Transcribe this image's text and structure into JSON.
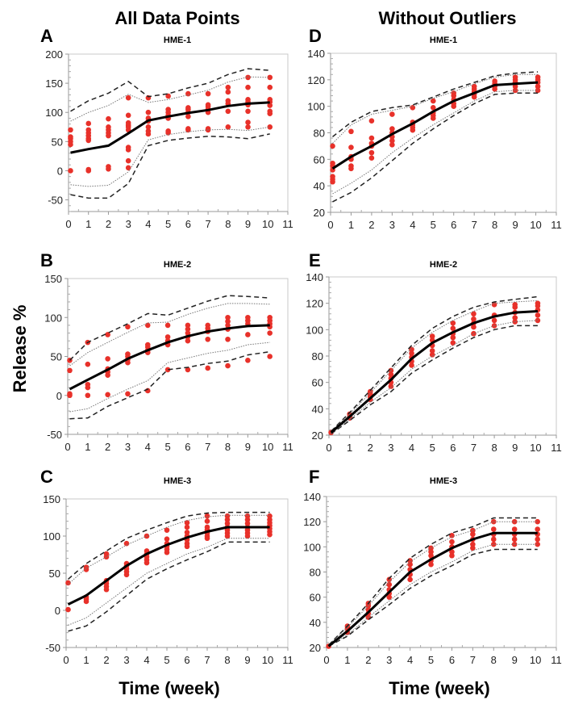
{
  "figure": {
    "column_headers": [
      "All Data Points",
      "Without Outliers"
    ],
    "ylabel": "Release %",
    "xlabel": "Time (week)",
    "colors": {
      "points": "#e8312a",
      "median": "#000000",
      "inner": "#777777",
      "outer": "#222222"
    }
  },
  "chart_data": [
    {
      "id": "A",
      "type": "line",
      "title": "HME-1",
      "ylim": [
        -70,
        200
      ],
      "yticks": [
        -50,
        0,
        50,
        100,
        150,
        200
      ],
      "xlim": [
        0,
        11
      ],
      "xticks": [
        0,
        1,
        2,
        3,
        4,
        5,
        6,
        7,
        8,
        9,
        10,
        11
      ],
      "x": [
        0.1,
        1,
        2,
        3,
        4,
        5,
        6,
        7,
        8,
        9,
        10.1
      ],
      "median": [
        31,
        37,
        43,
        64,
        86,
        93,
        99,
        104,
        111,
        115,
        117
      ],
      "inner_upper": [
        85,
        100,
        112,
        131,
        117,
        122,
        130,
        138,
        152,
        161,
        160
      ],
      "inner_lower": [
        -24,
        -27,
        -25,
        -2,
        53,
        62,
        67,
        70,
        71,
        69,
        75
      ],
      "outer_upper": [
        102,
        120,
        133,
        153,
        127,
        132,
        142,
        150,
        165,
        175,
        172
      ],
      "outer_lower": [
        -41,
        -47,
        -47,
        -22,
        43,
        52,
        56,
        59,
        58,
        55,
        63
      ],
      "points": [
        [
          0,
          45,
          50,
          55,
          58,
          70
        ],
        [
          0,
          2,
          52,
          55,
          60,
          65,
          70,
          81
        ],
        [
          3,
          7,
          60,
          65,
          70,
          75,
          89
        ],
        [
          5,
          17,
          36,
          40,
          70,
          75,
          78,
          82,
          95,
          125
        ],
        [
          63,
          68,
          75,
          85,
          90,
          100,
          125
        ],
        [
          65,
          68,
          90,
          95,
          100,
          105,
          128
        ],
        [
          70,
          72,
          93,
          100,
          105,
          108,
          132
        ],
        [
          70,
          72,
          100,
          105,
          110,
          113,
          132
        ],
        [
          75,
          102,
          115,
          120,
          135,
          143
        ],
        [
          75,
          83,
          102,
          113,
          118,
          122,
          143,
          160
        ],
        [
          75,
          98,
          102,
          112,
          118,
          122,
          143,
          160
        ]
      ]
    },
    {
      "id": "B",
      "type": "line",
      "title": "HME-2",
      "ylim": [
        -50,
        150
      ],
      "yticks": [
        -50,
        0,
        50,
        100,
        150
      ],
      "xlim": [
        0,
        11
      ],
      "xticks": [
        0,
        1,
        2,
        3,
        4,
        5,
        6,
        7,
        8,
        9,
        10,
        11
      ],
      "x": [
        0.1,
        1,
        2,
        3,
        4,
        5,
        6,
        7,
        8,
        9,
        10.1
      ],
      "median": [
        8,
        20,
        33,
        47,
        58,
        68,
        76,
        82,
        86,
        89,
        90
      ],
      "inner_upper": [
        38,
        55,
        68,
        81,
        93,
        94,
        104,
        112,
        118,
        118,
        117
      ],
      "inner_lower": [
        -21,
        -17,
        -4,
        8,
        19,
        42,
        48,
        54,
        58,
        65,
        68
      ],
      "outer_upper": [
        45,
        68,
        80,
        92,
        105,
        103,
        112,
        121,
        128,
        127,
        125
      ],
      "outer_lower": [
        -30,
        -29,
        -14,
        -3,
        8,
        33,
        36,
        41,
        44,
        52,
        56
      ],
      "points": [
        [
          0,
          2,
          32,
          45
        ],
        [
          0,
          10,
          14,
          40,
          68
        ],
        [
          1,
          26,
          30,
          34,
          47,
          78
        ],
        [
          2,
          42,
          46,
          50,
          53,
          88
        ],
        [
          6,
          55,
          58,
          62,
          65,
          90
        ],
        [
          33,
          65,
          70,
          75,
          90
        ],
        [
          33,
          70,
          75,
          80,
          85,
          90
        ],
        [
          35,
          72,
          82,
          86,
          90
        ],
        [
          38,
          72,
          85,
          90,
          95,
          100
        ],
        [
          45,
          78,
          92,
          96,
          100
        ],
        [
          50,
          80,
          88,
          92,
          96,
          100
        ]
      ]
    },
    {
      "id": "C",
      "type": "line",
      "title": "HME-3",
      "ylim": [
        -50,
        150
      ],
      "yticks": [
        -50,
        0,
        50,
        100,
        150
      ],
      "xlim": [
        0,
        11
      ],
      "xticks": [
        0,
        1,
        2,
        3,
        4,
        5,
        6,
        7,
        8,
        9,
        10,
        11
      ],
      "x": [
        0.1,
        1,
        2,
        3,
        4,
        5,
        6,
        7,
        8,
        9,
        10.1
      ],
      "median": [
        8,
        20,
        40,
        60,
        76,
        88,
        98,
        106,
        112,
        112,
        112
      ],
      "inner_upper": [
        35,
        57,
        72,
        88,
        100,
        112,
        121,
        126,
        128,
        128,
        128
      ],
      "inner_lower": [
        -20,
        -10,
        10,
        30,
        50,
        63,
        76,
        85,
        97,
        97,
        97
      ],
      "outer_upper": [
        42,
        63,
        80,
        97,
        108,
        118,
        127,
        131,
        132,
        132,
        132
      ],
      "outer_lower": [
        -28,
        -21,
        -2,
        20,
        42,
        56,
        68,
        79,
        92,
        92,
        92
      ],
      "points": [
        [
          1,
          37
        ],
        [
          12,
          15,
          18,
          55,
          58
        ],
        [
          28,
          32,
          36,
          40,
          72,
          76
        ],
        [
          48,
          52,
          56,
          60,
          63,
          90
        ],
        [
          64,
          68,
          72,
          76,
          80,
          100
        ],
        [
          78,
          82,
          86,
          90,
          96,
          108
        ],
        [
          86,
          90,
          95,
          100,
          105,
          112,
          118
        ],
        [
          97,
          100,
          104,
          108,
          112,
          120,
          127
        ],
        [
          100,
          104,
          108,
          112,
          117,
          122,
          127
        ],
        [
          100,
          104,
          108,
          112,
          117,
          122,
          127
        ],
        [
          102,
          106,
          110,
          114,
          118,
          122,
          127
        ]
      ]
    },
    {
      "id": "D",
      "type": "line",
      "title": "HME-1",
      "ylim": [
        20,
        140
      ],
      "yticks": [
        20,
        40,
        60,
        80,
        100,
        120,
        140
      ],
      "xlim": [
        0,
        11
      ],
      "xticks": [
        0,
        1,
        2,
        3,
        4,
        5,
        6,
        7,
        8,
        9,
        10,
        11
      ],
      "x": [
        0.1,
        1,
        2,
        3,
        4,
        5,
        6,
        7,
        8,
        9,
        10.1
      ],
      "median": [
        53,
        62,
        70,
        79,
        87,
        96,
        104,
        110,
        116,
        117,
        118
      ],
      "inner_upper": [
        72,
        86,
        94,
        97,
        100,
        106,
        111,
        117,
        122,
        124,
        124
      ],
      "inner_lower": [
        34,
        42,
        52,
        65,
        76,
        86,
        95,
        104,
        111,
        112,
        112
      ],
      "outer_upper": [
        77,
        88,
        96,
        99,
        101,
        107,
        113,
        118,
        123,
        125,
        126
      ],
      "outer_lower": [
        28,
        35,
        46,
        59,
        72,
        83,
        93,
        102,
        109,
        110,
        110
      ],
      "points": [
        [
          43,
          45,
          47,
          52,
          55,
          57,
          70
        ],
        [
          53,
          55,
          60,
          62,
          69,
          81
        ],
        [
          61,
          65,
          70,
          72,
          76,
          89
        ],
        [
          71,
          74,
          77,
          80,
          83,
          94
        ],
        [
          82,
          84,
          86,
          88,
          99
        ],
        [
          91,
          93,
          95,
          99,
          104
        ],
        [
          100,
          102,
          105,
          108,
          110
        ],
        [
          107,
          109,
          111,
          113,
          115
        ],
        [
          113,
          115,
          117,
          119
        ],
        [
          112,
          115,
          118,
          120,
          122
        ],
        [
          112,
          115,
          118,
          120,
          122
        ]
      ]
    },
    {
      "id": "E",
      "type": "line",
      "title": "HME-2",
      "ylim": [
        20,
        140
      ],
      "yticks": [
        20,
        40,
        60,
        80,
        100,
        120,
        140
      ],
      "xlim": [
        0,
        11
      ],
      "xticks": [
        0,
        1,
        2,
        3,
        4,
        5,
        6,
        7,
        8,
        9,
        10,
        11
      ],
      "x": [
        0.1,
        1,
        2,
        3,
        4,
        5,
        6,
        7,
        8,
        9,
        10.1
      ],
      "median": [
        22,
        34,
        48,
        62,
        78,
        90,
        98,
        105,
        110,
        113,
        114
      ],
      "inner_upper": [
        23,
        36,
        52,
        69,
        86,
        98,
        107,
        114,
        120,
        121,
        122
      ],
      "inner_lower": [
        21,
        32,
        45,
        56,
        70,
        80,
        88,
        97,
        103,
        106,
        107
      ],
      "outer_upper": [
        23,
        37,
        54,
        71,
        88,
        101,
        110,
        117,
        121,
        123,
        125
      ],
      "outer_lower": [
        21,
        31,
        43,
        53,
        67,
        77,
        86,
        94,
        100,
        103,
        103
      ],
      "points": [
        [
          22
        ],
        [
          33,
          34,
          36
        ],
        [
          47,
          49,
          51,
          53
        ],
        [
          57,
          60,
          63,
          66,
          69
        ],
        [
          73,
          76,
          79,
          82,
          85
        ],
        [
          81,
          84,
          88,
          92,
          95
        ],
        [
          90,
          94,
          97,
          101,
          105
        ],
        [
          97,
          102,
          105,
          108,
          112
        ],
        [
          103,
          107,
          111,
          119
        ],
        [
          106,
          109,
          113,
          117,
          119
        ],
        [
          107,
          111,
          115,
          118,
          120
        ]
      ]
    },
    {
      "id": "F",
      "type": "line",
      "title": "HME-3",
      "ylim": [
        20,
        140
      ],
      "yticks": [
        20,
        40,
        60,
        80,
        100,
        120,
        140
      ],
      "xlim": [
        0,
        11
      ],
      "xticks": [
        0,
        1,
        2,
        3,
        4,
        5,
        6,
        7,
        8,
        9,
        10,
        11
      ],
      "x": [
        0.1,
        1,
        2,
        3,
        4,
        5,
        6,
        7,
        8,
        9,
        10.1
      ],
      "median": [
        21,
        33,
        48,
        64,
        80,
        90,
        99,
        106,
        111,
        111,
        111
      ],
      "inner_upper": [
        22,
        36,
        53,
        72,
        88,
        99,
        108,
        113,
        120,
        120,
        120
      ],
      "inner_lower": [
        21,
        30,
        44,
        57,
        70,
        80,
        88,
        97,
        102,
        102,
        102
      ],
      "outer_upper": [
        22,
        37,
        55,
        75,
        91,
        102,
        111,
        116,
        123,
        123,
        123
      ],
      "outer_lower": [
        21,
        29,
        42,
        54,
        67,
        77,
        85,
        94,
        98,
        98,
        98
      ],
      "points": [
        [
          21
        ],
        [
          32,
          35,
          37
        ],
        [
          44,
          47,
          50,
          53,
          55
        ],
        [
          60,
          63,
          66,
          70,
          74
        ],
        [
          74,
          78,
          82,
          86,
          89
        ],
        [
          86,
          89,
          93,
          96,
          99
        ],
        [
          93,
          96,
          100,
          104,
          109
        ],
        [
          99,
          102,
          106,
          110,
          113
        ],
        [
          102,
          106,
          110,
          114,
          120
        ],
        [
          102,
          106,
          110,
          114,
          120
        ],
        [
          102,
          106,
          110,
          114,
          120
        ]
      ]
    }
  ]
}
